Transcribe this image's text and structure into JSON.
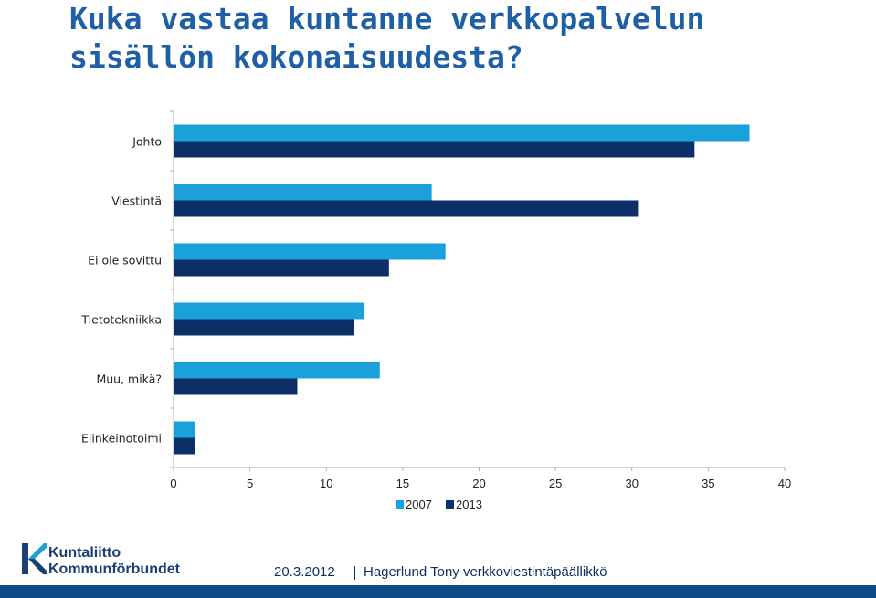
{
  "title_lines": [
    "Kuka vastaa kuntanne verkkopalvelun",
    "sisällön kokonaisuudesta?"
  ],
  "chart_data": {
    "type": "bar",
    "orientation": "horizontal",
    "categories": [
      "Johto",
      "Viestintä",
      "Ei ole sovittu",
      "Tietotekniikka",
      "Muu, mikä?",
      "Elinkeinotoimi"
    ],
    "series": [
      {
        "name": "2007",
        "color": "#1ba1d9",
        "values": [
          37.7,
          16.9,
          17.8,
          12.5,
          13.5,
          1.4
        ]
      },
      {
        "name": "2013",
        "color": "#0b2f66",
        "values": [
          34.1,
          30.4,
          14.1,
          11.8,
          8.1,
          1.4
        ]
      }
    ],
    "xticks": [
      0,
      5,
      10,
      15,
      20,
      25,
      30,
      35,
      40
    ],
    "xlim": [
      0,
      40
    ],
    "legend": "bottom-center",
    "grid": false
  },
  "logo": {
    "line1": "Kuntaliitto",
    "line2": "Kommunförbundet"
  },
  "footer": {
    "date": "20.3.2012",
    "author": "Hagerlund Tony verkkoviestintäpäällikkö"
  }
}
